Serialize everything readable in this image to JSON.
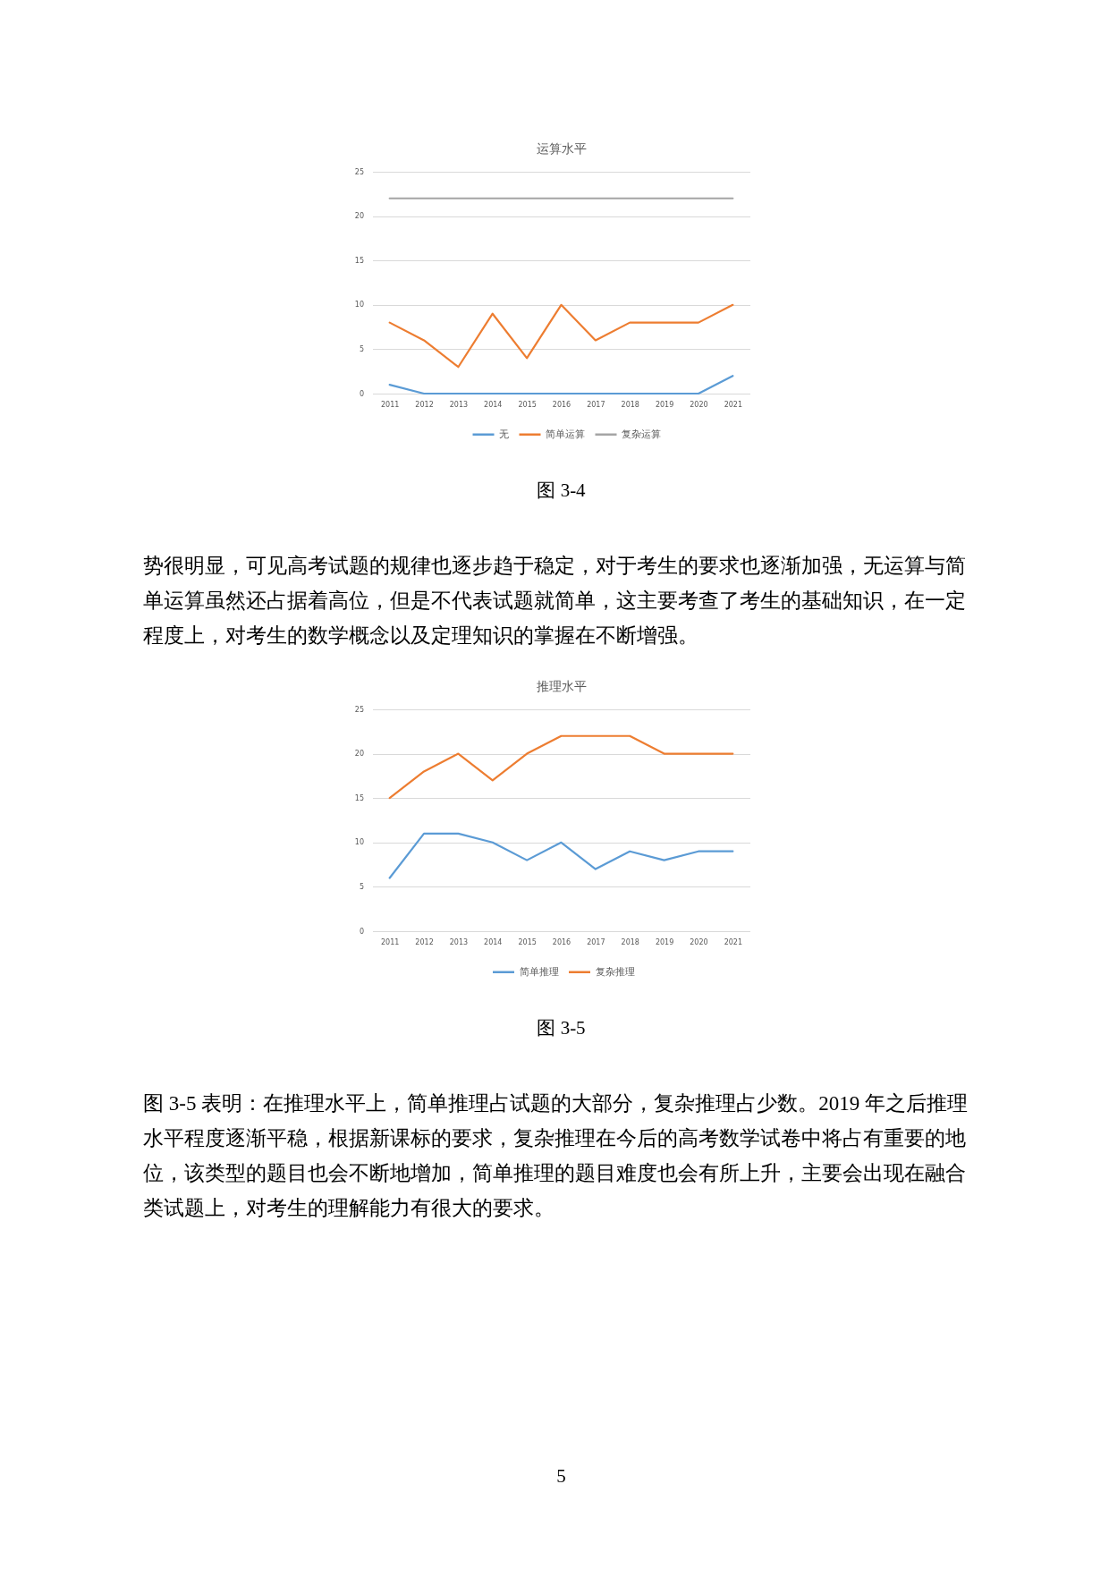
{
  "chart_data": [
    {
      "type": "line",
      "title": "运算水平",
      "categories": [
        "2011",
        "2012",
        "2013",
        "2014",
        "2015",
        "2016",
        "2017",
        "2018",
        "2019",
        "2020",
        "2021"
      ],
      "series": [
        {
          "name": "无",
          "color": "#5b9bd5",
          "values": [
            1,
            0,
            0,
            0,
            0,
            0,
            0,
            0,
            0,
            0,
            2
          ]
        },
        {
          "name": "简单运算",
          "color": "#ed7d31",
          "values": [
            8,
            6,
            3,
            9,
            4,
            10,
            6,
            8,
            8,
            8,
            10
          ]
        },
        {
          "name": "复杂运算",
          "color": "#a5a5a5",
          "values": [
            22,
            22,
            22,
            22,
            22,
            22,
            22,
            22,
            22,
            22,
            22
          ]
        }
      ],
      "ylim": [
        0,
        25
      ],
      "yticks": [
        0,
        5,
        10,
        15,
        20,
        25
      ],
      "grid": "y",
      "legend": "bottom",
      "line_style": "solid",
      "annotations": [
        "图 3-4",
        "势很明显，可见高考试题的规律也逐步趋于稳定，对于考生的要求也逐渐加强，无运算与简单运算虽然还占据着高位，但是不代表试题就简单，这主要考查了考生的基础知识，在一定程度上，对考生的数学概念以及定理知识的掌握在不断增强。"
      ]
    },
    {
      "type": "line",
      "title": "推理水平",
      "categories": [
        "2011",
        "2012",
        "2013",
        "2014",
        "2015",
        "2016",
        "2017",
        "2018",
        "2019",
        "2020",
        "2021"
      ],
      "series": [
        {
          "name": "简单推理",
          "color": "#5b9bd5",
          "values": [
            6,
            11,
            11,
            10,
            8,
            10,
            7,
            9,
            8,
            9,
            9
          ]
        },
        {
          "name": "复杂推理",
          "color": "#ed7d31",
          "values": [
            15,
            18,
            20,
            17,
            20,
            22,
            22,
            22,
            20,
            20,
            20
          ]
        }
      ],
      "ylim": [
        0,
        25
      ],
      "yticks": [
        0,
        5,
        10,
        15,
        20,
        25
      ],
      "grid": "y",
      "legend": "bottom",
      "line_style": "solid",
      "annotations": [
        "图 3-5",
        "图 3-5 表明：在推理水平上，简单推理占试题的大部分，复杂推理占少数。2019 年之后推理水平程度逐渐平稳，根据新课标的要求，复杂推理在今后的高考数学试卷中将占有重要的地位，该类型的题目也会不断地增加，简单推理的题目难度也会有所上升，主要会出现在融合类试题上，对考生的理解能力有很大的要求。",
        "5"
      ]
    }
  ]
}
